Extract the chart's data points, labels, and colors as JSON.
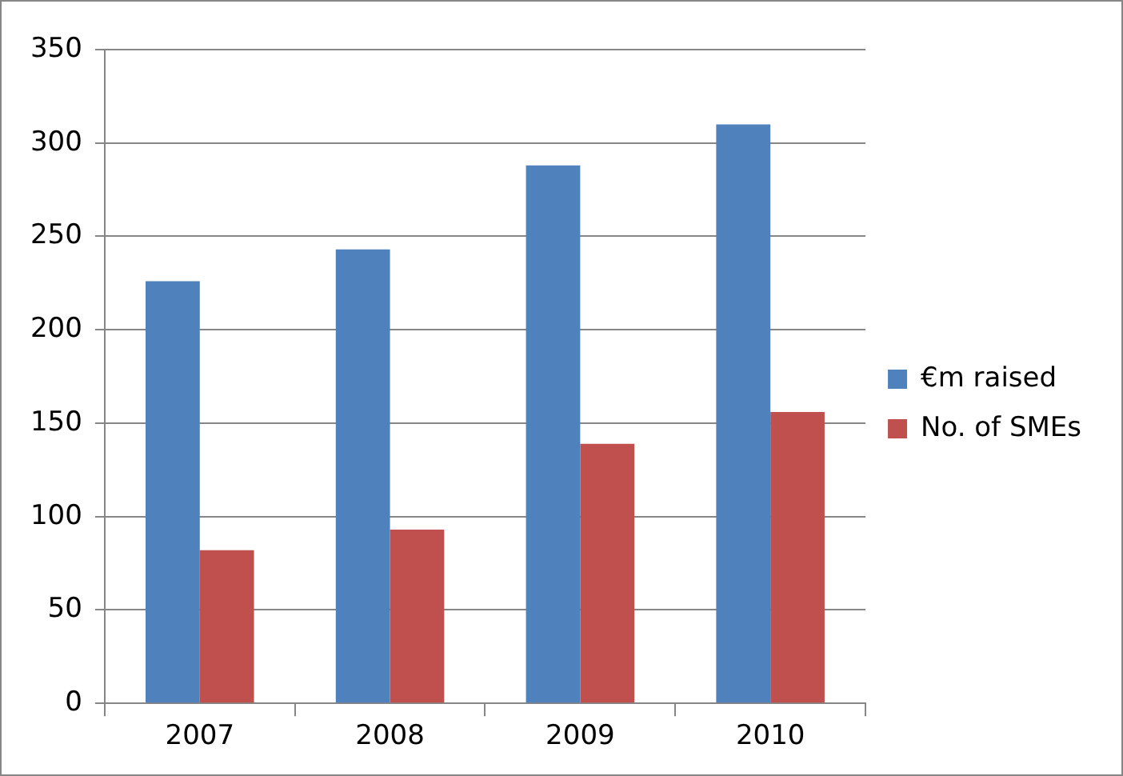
{
  "chart_data": {
    "type": "bar",
    "categories": [
      "2007",
      "2008",
      "2009",
      "2010"
    ],
    "series": [
      {
        "name": "€m raised",
        "color": "#4f81bd",
        "values": [
          226,
          243,
          288,
          310
        ]
      },
      {
        "name": "No. of SMEs",
        "color": "#c0504d",
        "values": [
          82,
          93,
          139,
          156
        ]
      }
    ],
    "ylim": [
      0,
      350
    ],
    "yticks": [
      0,
      50,
      100,
      150,
      200,
      250,
      300,
      350
    ],
    "grid": "y",
    "legend": "right"
  }
}
